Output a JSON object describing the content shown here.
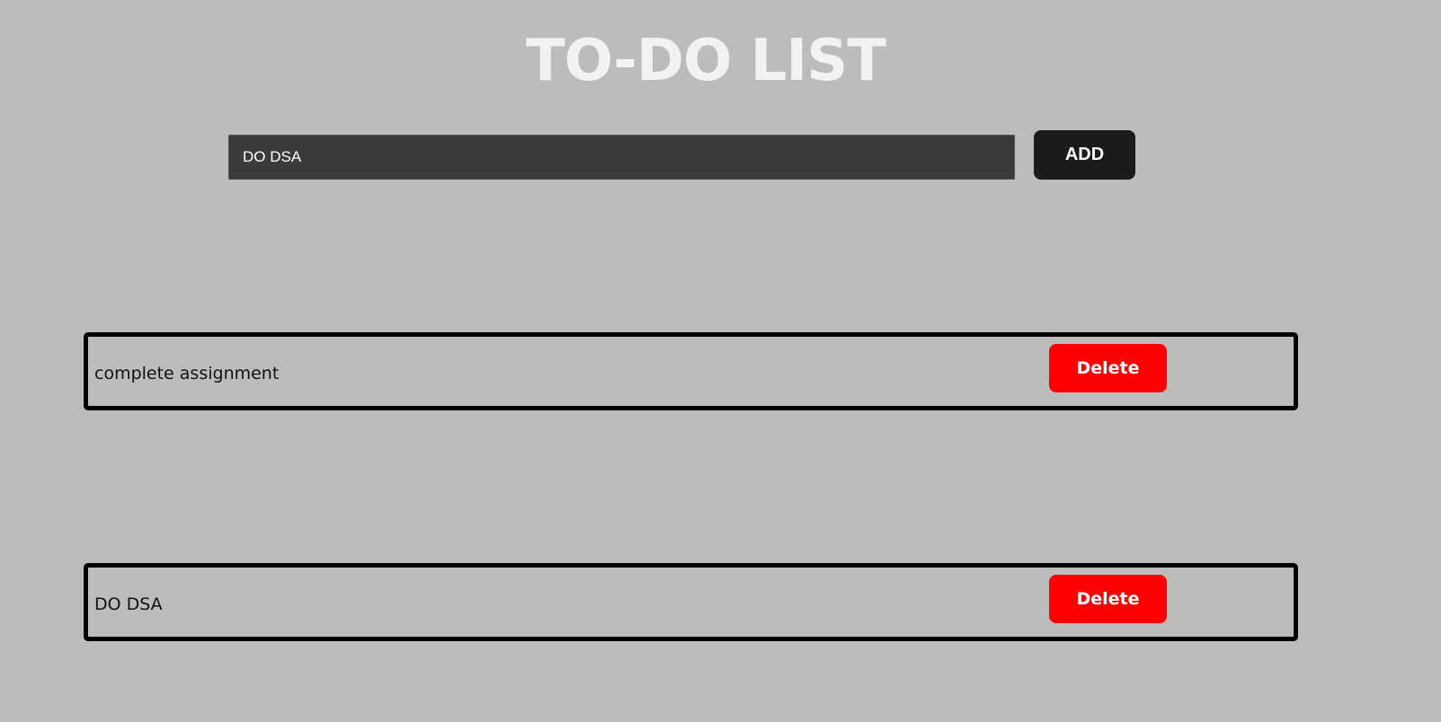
{
  "header": {
    "title": "TO-DO LIST"
  },
  "input": {
    "value": "DO DSA",
    "add_label": "ADD"
  },
  "todos": [
    {
      "text": "complete assignment",
      "delete_label": "Delete"
    },
    {
      "text": "DO DSA",
      "delete_label": "Delete"
    }
  ],
  "colors": {
    "background": "#bdbcba",
    "title": "#f2f2f2",
    "input_bg": "#3b3b3b",
    "add_button": "#1b1b1b",
    "delete_button": "#ff0000",
    "item_border": "#000000"
  }
}
